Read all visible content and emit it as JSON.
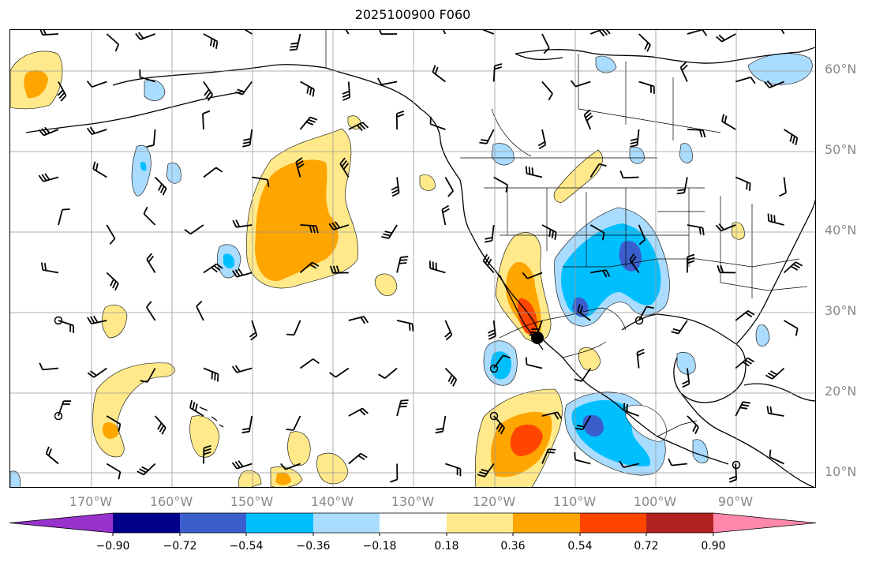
{
  "title": "2025100900 F060",
  "latitude_labels": [
    "60°N",
    "50°N",
    "40°N",
    "30°N",
    "20°N",
    "10°N"
  ],
  "longitude_labels": [
    "170°W",
    "160°W",
    "150°W",
    "140°W",
    "130°W",
    "120°W",
    "110°W",
    "100°W",
    "90°W"
  ],
  "colorbar": {
    "tick_labels": [
      "−0.90",
      "−0.72",
      "−0.54",
      "−0.36",
      "−0.18",
      "0.18",
      "0.36",
      "0.54",
      "0.72",
      "0.90"
    ],
    "colors": [
      "#9932cc",
      "#00008b",
      "#3a5fcd",
      "#00bfff",
      "#aadcff",
      "#ffffff",
      "#ffe98a",
      "#ffa500",
      "#ff4500",
      "#b22222",
      "#ff88aa"
    ]
  },
  "map": {
    "lon_range": [
      -180,
      -80
    ],
    "lat_range": [
      7,
      64
    ],
    "gridlines": true,
    "marker_label": ""
  }
}
